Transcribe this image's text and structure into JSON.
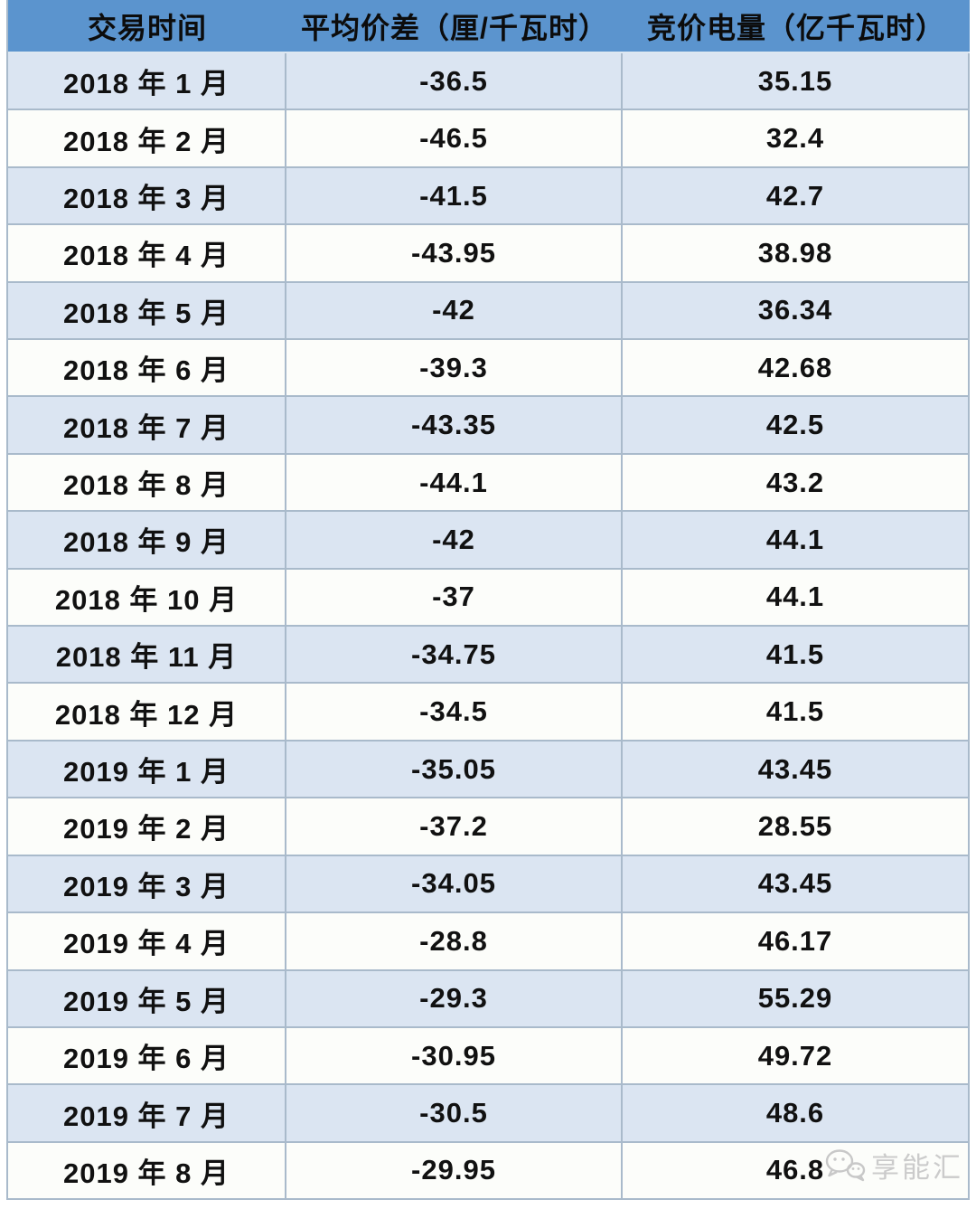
{
  "colors": {
    "header_bg": "#5b94ce",
    "row_odd": "#dbe5f2",
    "row_even": "#fcfdfa",
    "border": "#a9bacb",
    "header_text": "#0c0c0c",
    "cell_text": "#111111",
    "watermark": "#cbcbcb"
  },
  "table": {
    "header": {
      "columns": [
        "交易时间",
        "平均价差（厘/千瓦时）",
        "竞价电量（亿千瓦时）"
      ]
    },
    "rows": [
      {
        "month": "2018 年 1 月",
        "spread": "-36.5",
        "volume": "35.15"
      },
      {
        "month": "2018 年 2 月",
        "spread": "-46.5",
        "volume": "32.4"
      },
      {
        "month": "2018 年 3 月",
        "spread": "-41.5",
        "volume": "42.7"
      },
      {
        "month": "2018 年 4 月",
        "spread": "-43.95",
        "volume": "38.98"
      },
      {
        "month": "2018 年 5 月",
        "spread": "-42",
        "volume": "36.34"
      },
      {
        "month": "2018 年 6 月",
        "spread": "-39.3",
        "volume": "42.68"
      },
      {
        "month": "2018 年 7 月",
        "spread": "-43.35",
        "volume": "42.5"
      },
      {
        "month": "2018 年 8 月",
        "spread": "-44.1",
        "volume": "43.2"
      },
      {
        "month": "2018 年 9 月",
        "spread": "-42",
        "volume": "44.1"
      },
      {
        "month": "2018 年 10 月",
        "spread": "-37",
        "volume": "44.1"
      },
      {
        "month": "2018 年 11 月",
        "spread": "-34.75",
        "volume": "41.5"
      },
      {
        "month": "2018 年 12 月",
        "spread": "-34.5",
        "volume": "41.5"
      },
      {
        "month": "2019 年 1 月",
        "spread": "-35.05",
        "volume": "43.45"
      },
      {
        "month": "2019 年 2 月",
        "spread": "-37.2",
        "volume": "28.55"
      },
      {
        "month": "2019 年 3 月",
        "spread": "-34.05",
        "volume": "43.45"
      },
      {
        "month": "2019 年 4 月",
        "spread": "-28.8",
        "volume": "46.17"
      },
      {
        "month": "2019 年 5 月",
        "spread": "-29.3",
        "volume": "55.29"
      },
      {
        "month": "2019 年 6 月",
        "spread": "-30.95",
        "volume": "49.72"
      },
      {
        "month": "2019 年 7 月",
        "spread": "-30.5",
        "volume": "48.6"
      },
      {
        "month": "2019 年 8 月",
        "spread": "-29.95",
        "volume": "46.8"
      }
    ]
  },
  "watermark": {
    "icon": "wechat-bubbles-icon",
    "text": "享能汇"
  },
  "chart_data": {
    "type": "table",
    "title": "",
    "columns": [
      "交易时间",
      "平均价差（厘/千瓦时）",
      "竞价电量（亿千瓦时）"
    ],
    "categories": [
      "2018年1月",
      "2018年2月",
      "2018年3月",
      "2018年4月",
      "2018年5月",
      "2018年6月",
      "2018年7月",
      "2018年8月",
      "2018年9月",
      "2018年10月",
      "2018年11月",
      "2018年12月",
      "2019年1月",
      "2019年2月",
      "2019年3月",
      "2019年4月",
      "2019年5月",
      "2019年6月",
      "2019年7月",
      "2019年8月"
    ],
    "series": [
      {
        "name": "平均价差（厘/千瓦时）",
        "values": [
          -36.5,
          -46.5,
          -41.5,
          -43.95,
          -42,
          -39.3,
          -43.35,
          -44.1,
          -42,
          -37,
          -34.75,
          -34.5,
          -35.05,
          -37.2,
          -34.05,
          -28.8,
          -29.3,
          -30.95,
          -30.5,
          -29.95
        ]
      },
      {
        "name": "竞价电量（亿千瓦时）",
        "values": [
          35.15,
          32.4,
          42.7,
          38.98,
          36.34,
          42.68,
          42.5,
          43.2,
          44.1,
          44.1,
          41.5,
          41.5,
          43.45,
          28.55,
          43.45,
          46.17,
          55.29,
          49.72,
          48.6,
          46.8
        ]
      }
    ],
    "layout": {
      "grid": true,
      "alternating_rows": true,
      "header_position": "top"
    }
  }
}
